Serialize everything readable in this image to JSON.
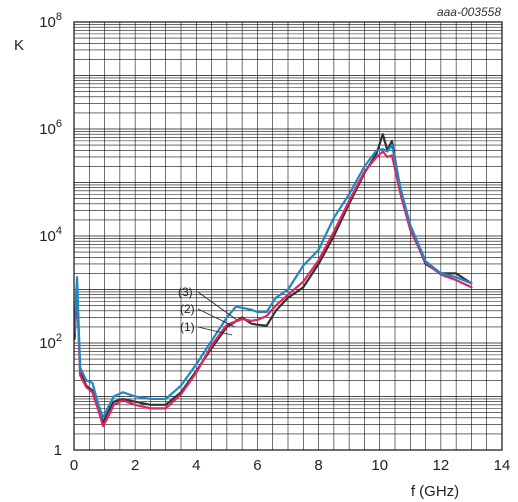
{
  "reference_id": "aaa-003558",
  "chart_data": {
    "type": "line",
    "xlabel": "f (GHz)",
    "ylabel": "K",
    "xlim": [
      0,
      14
    ],
    "ylim": [
      1,
      100000000
    ],
    "yscale": "log",
    "grid": true,
    "x_ticks": [
      "0",
      "2",
      "4",
      "6",
      "8",
      "10",
      "12",
      "14"
    ],
    "y_ticks": [
      {
        "mantissa": "1",
        "exp": ""
      },
      {
        "mantissa": "10",
        "exp": "2"
      },
      {
        "mantissa": "10",
        "exp": "4"
      },
      {
        "mantissa": "10",
        "exp": "6"
      },
      {
        "mantissa": "10",
        "exp": "8"
      }
    ],
    "series": [
      {
        "name": "(1)",
        "color": "#333333",
        "points": [
          [
            0.02,
            120
          ],
          [
            0.1,
            1000
          ],
          [
            0.2,
            30
          ],
          [
            0.4,
            16
          ],
          [
            0.6,
            13
          ],
          [
            0.8,
            6
          ],
          [
            0.95,
            3.2
          ],
          [
            1.1,
            5
          ],
          [
            1.3,
            8
          ],
          [
            1.6,
            9
          ],
          [
            2,
            8
          ],
          [
            2.5,
            7
          ],
          [
            3,
            7
          ],
          [
            3.5,
            12
          ],
          [
            4,
            30
          ],
          [
            4.5,
            80
          ],
          [
            5,
            200
          ],
          [
            5.5,
            300
          ],
          [
            5.8,
            230
          ],
          [
            6,
            220
          ],
          [
            6.3,
            210
          ],
          [
            6.6,
            400
          ],
          [
            7,
            700
          ],
          [
            7.5,
            1100
          ],
          [
            8,
            3000
          ],
          [
            8.5,
            10000
          ],
          [
            9,
            40000
          ],
          [
            9.5,
            150000
          ],
          [
            9.9,
            350000
          ],
          [
            10.1,
            800000
          ],
          [
            10.25,
            400000
          ],
          [
            10.4,
            600000
          ],
          [
            10.7,
            60000
          ],
          [
            11,
            15000
          ],
          [
            11.5,
            3000
          ],
          [
            12,
            2000
          ],
          [
            12.5,
            2000
          ],
          [
            13,
            1300
          ]
        ]
      },
      {
        "name": "(2)",
        "color": "#e0245e",
        "points": [
          [
            0.02,
            150
          ],
          [
            0.1,
            1200
          ],
          [
            0.2,
            25
          ],
          [
            0.4,
            15
          ],
          [
            0.6,
            12
          ],
          [
            0.8,
            5.5
          ],
          [
            0.95,
            2.8
          ],
          [
            1.1,
            4
          ],
          [
            1.3,
            7
          ],
          [
            1.6,
            8.5
          ],
          [
            2,
            7
          ],
          [
            2.5,
            6
          ],
          [
            3,
            6
          ],
          [
            3.5,
            11
          ],
          [
            4,
            28
          ],
          [
            4.5,
            90
          ],
          [
            5,
            220
          ],
          [
            5.5,
            280
          ],
          [
            5.8,
            260
          ],
          [
            6,
            270
          ],
          [
            6.3,
            320
          ],
          [
            6.6,
            500
          ],
          [
            7,
            800
          ],
          [
            7.5,
            1400
          ],
          [
            8,
            3500
          ],
          [
            8.5,
            12000
          ],
          [
            9,
            45000
          ],
          [
            9.5,
            160000
          ],
          [
            9.9,
            300000
          ],
          [
            10.1,
            380000
          ],
          [
            10.25,
            300000
          ],
          [
            10.4,
            320000
          ],
          [
            10.7,
            55000
          ],
          [
            11,
            13000
          ],
          [
            11.5,
            3200
          ],
          [
            12,
            1900
          ],
          [
            12.5,
            1500
          ],
          [
            13,
            1100
          ]
        ]
      },
      {
        "name": "(3)",
        "color": "#1e88c7",
        "points": [
          [
            0.02,
            180
          ],
          [
            0.1,
            1700
          ],
          [
            0.2,
            35
          ],
          [
            0.4,
            20
          ],
          [
            0.6,
            18
          ],
          [
            0.8,
            7
          ],
          [
            0.95,
            4
          ],
          [
            1.1,
            6
          ],
          [
            1.3,
            10
          ],
          [
            1.6,
            12
          ],
          [
            2,
            10
          ],
          [
            2.5,
            9
          ],
          [
            3,
            9
          ],
          [
            3.5,
            16
          ],
          [
            4,
            40
          ],
          [
            4.5,
            110
          ],
          [
            5,
            300
          ],
          [
            5.3,
            480
          ],
          [
            5.8,
            420
          ],
          [
            6,
            380
          ],
          [
            6.3,
            380
          ],
          [
            6.6,
            700
          ],
          [
            7,
            1000
          ],
          [
            7.5,
            2800
          ],
          [
            8,
            5500
          ],
          [
            8.5,
            22000
          ],
          [
            9,
            60000
          ],
          [
            9.5,
            200000
          ],
          [
            9.9,
            400000
          ],
          [
            10.1,
            420000
          ],
          [
            10.25,
            380000
          ],
          [
            10.4,
            500000
          ],
          [
            10.7,
            70000
          ],
          [
            11,
            16000
          ],
          [
            11.5,
            3400
          ],
          [
            12,
            2000
          ],
          [
            12.5,
            1700
          ],
          [
            13,
            1300
          ]
        ]
      }
    ]
  }
}
